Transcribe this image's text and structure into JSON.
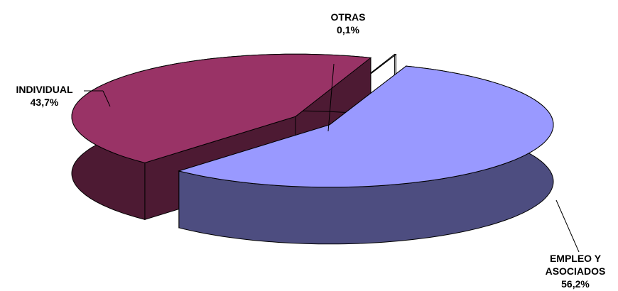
{
  "chart_data": {
    "type": "pie3d",
    "categories": [
      "EMPLEO Y ASOCIADOS",
      "INDIVIDUAL",
      "OTRAS"
    ],
    "values": [
      56.2,
      43.7,
      0.1
    ],
    "value_labels": [
      "56,2%",
      "43,7%",
      "0,1%"
    ],
    "colors": [
      "#9999ff",
      "#993366",
      "#ffffff"
    ],
    "side_colors": [
      "#4d4d80",
      "#4d1a33",
      "#ffffff"
    ]
  }
}
